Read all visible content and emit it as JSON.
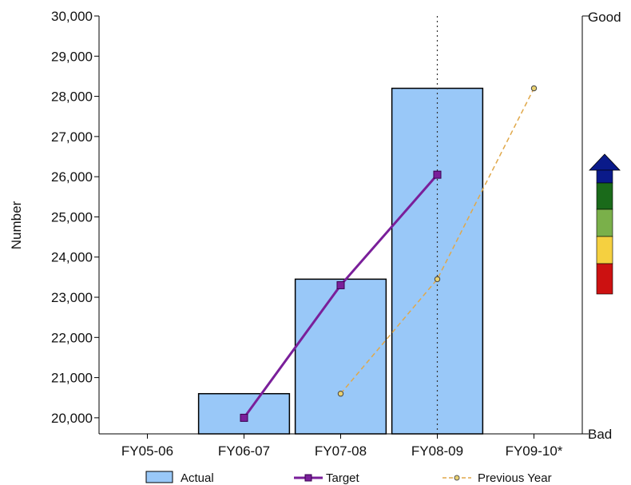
{
  "chart_data": {
    "type": "bar",
    "categories": [
      "FY05-06",
      "FY06-07",
      "FY07-08",
      "FY08-09",
      "FY09-10*"
    ],
    "series": [
      {
        "name": "Actual",
        "kind": "bar",
        "values": [
          null,
          20600,
          23450,
          28200,
          null
        ],
        "color": "#99c8f8"
      },
      {
        "name": "Target",
        "kind": "line",
        "values": [
          null,
          20000,
          23300,
          26050,
          null
        ],
        "color": "#7a1f9a"
      },
      {
        "name": "Previous Year",
        "kind": "line-dashed",
        "values": [
          null,
          null,
          20600,
          23450,
          28200
        ],
        "color": "#e0a84a"
      }
    ],
    "title": "",
    "xlabel": "",
    "ylabel": "Number",
    "ylim": [
      19600,
      30000
    ],
    "yticks": [
      20000,
      21000,
      22000,
      23000,
      24000,
      25000,
      26000,
      27000,
      28000,
      29000,
      30000
    ],
    "ytick_labels": [
      "20,000",
      "21,000",
      "22,000",
      "23,000",
      "24,000",
      "25,000",
      "26,000",
      "27,000",
      "28,000",
      "29,000",
      "30,000"
    ],
    "right_axis": {
      "top_label": "Good",
      "bottom_label": "Bad"
    },
    "indicator_colors": [
      "#0a1a8a",
      "#1a6a1a",
      "#7ab04a",
      "#f5d040",
      "#cc1111"
    ],
    "current_period_marker": "FY08-09",
    "legend": {
      "placement": "bottom",
      "entries": [
        "Actual",
        "Target",
        "Previous Year"
      ]
    },
    "grid": false
  }
}
